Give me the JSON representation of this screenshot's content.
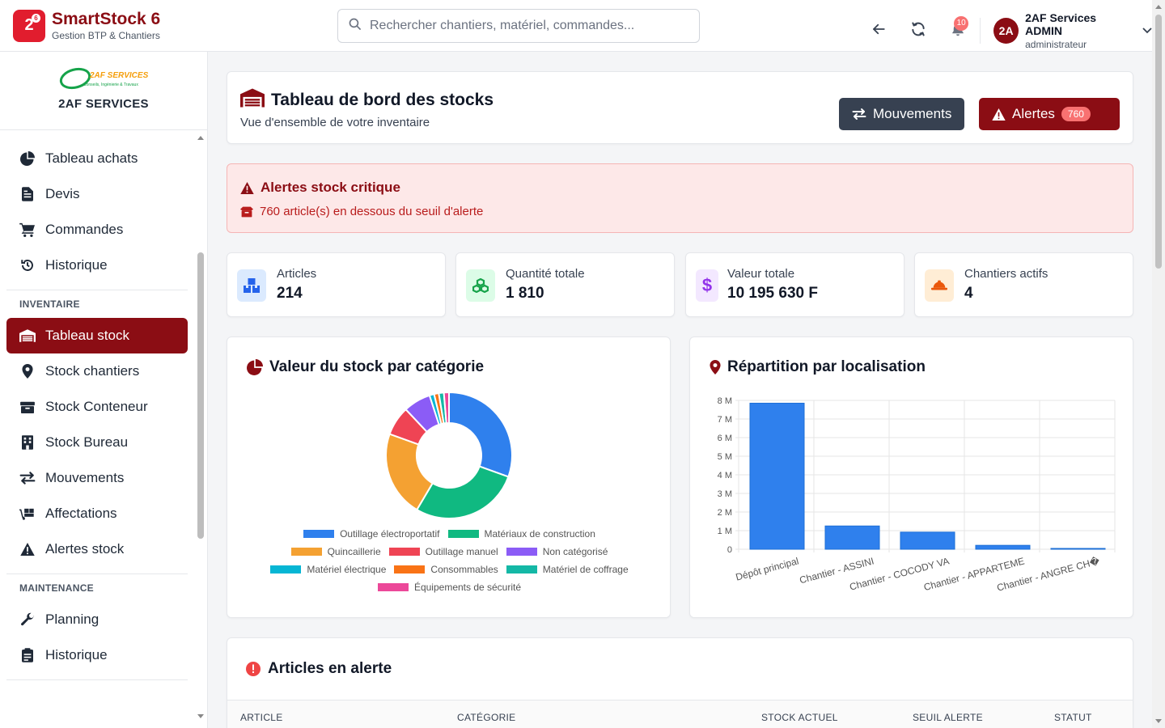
{
  "app": {
    "name": "SmartStock 6",
    "subtitle": "Gestion BTP & Chantiers",
    "logo_text": "2",
    "logo_sup": "6"
  },
  "search": {
    "placeholder": "Rechercher chantiers, matériel, commandes..."
  },
  "notifications": {
    "count": "10"
  },
  "user": {
    "initials": "2A",
    "name": "2AF Services ADMIN",
    "role": "administrateur"
  },
  "company": {
    "name": "2AF SERVICES",
    "logo_text": "2AF SERVICES",
    "logo_tagline": "Conseils, Ingénierie & Travaux"
  },
  "sidebar": {
    "items_top": [
      {
        "label": "Tableau achats",
        "icon": "pie-chart-icon"
      },
      {
        "label": "Devis",
        "icon": "file-invoice-icon"
      },
      {
        "label": "Commandes",
        "icon": "cart-icon"
      },
      {
        "label": "Historique",
        "icon": "history-icon"
      }
    ],
    "section_inventaire": "INVENTAIRE",
    "items_inventaire": [
      {
        "label": "Tableau stock",
        "icon": "warehouse-icon"
      },
      {
        "label": "Stock chantiers",
        "icon": "map-pin-icon"
      },
      {
        "label": "Stock Conteneur",
        "icon": "container-icon"
      },
      {
        "label": "Stock Bureau",
        "icon": "building-icon"
      },
      {
        "label": "Mouvements",
        "icon": "exchange-icon"
      },
      {
        "label": "Affectations",
        "icon": "dolly-icon"
      },
      {
        "label": "Alertes stock",
        "icon": "warning-icon"
      }
    ],
    "section_maintenance": "MAINTENANCE",
    "items_maintenance": [
      {
        "label": "Planning",
        "icon": "wrench-icon"
      },
      {
        "label": "Historique",
        "icon": "clipboard-icon"
      }
    ]
  },
  "header": {
    "title": "Tableau de bord des stocks",
    "subtitle": "Vue d'ensemble de votre inventaire",
    "btn_movements": "Mouvements",
    "btn_alerts": "Alertes",
    "alerts_count": "760"
  },
  "alert": {
    "title": "Alertes stock critique",
    "message": "760 article(s) en dessous du seuil d'alerte"
  },
  "stats": [
    {
      "label": "Articles",
      "value": "214",
      "color": "#2563eb",
      "bg": "#dbeafe"
    },
    {
      "label": "Quantité totale",
      "value": "1 810",
      "color": "#16a34a",
      "bg": "#dcfce7"
    },
    {
      "label": "Valeur totale",
      "value": "10 195 630 F",
      "color": "#9333ea",
      "bg": "#f3e8ff"
    },
    {
      "label": "Chantiers actifs",
      "value": "4",
      "color": "#ea580c",
      "bg": "#ffedd5"
    }
  ],
  "chart_data": [
    {
      "type": "pie",
      "title": "Valeur du stock par catégorie",
      "categories": [
        "Outillage électroportatif",
        "Matériaux de construction",
        "Quincaillerie",
        "Outillage manuel",
        "Non catégorisé",
        "Matériel électrique",
        "Consommables",
        "Matériel de coffrage",
        "Équipements de sécurité"
      ],
      "values": [
        30.5,
        28.0,
        22.0,
        7.5,
        7.0,
        1.2,
        1.2,
        1.3,
        1.3
      ],
      "colors": [
        "#2f80ed",
        "#10b981",
        "#f4a132",
        "#ef4454",
        "#8b5cf6",
        "#06b6d4",
        "#f97316",
        "#14b8a6",
        "#ec4899"
      ],
      "legend_rows": [
        [
          0,
          1
        ],
        [
          2,
          3,
          4
        ],
        [
          5,
          6,
          7
        ],
        [
          8
        ]
      ]
    },
    {
      "type": "bar",
      "title": "Répartition par localisation",
      "categories": [
        "Dépôt principal",
        "Chantier - ASSINI",
        "Chantier - COCODY VA",
        "Chantier - APPARTEME",
        "Chantier - ANGRE CH�"
      ],
      "values": [
        7850000,
        1250000,
        920000,
        210000,
        40000
      ],
      "yticks": [
        "0",
        "1 M",
        "2 M",
        "3 M",
        "4 M",
        "5 M",
        "6 M",
        "7 M",
        "8 M"
      ],
      "ylim": [
        0,
        8000000
      ],
      "color": "#2f80ed"
    }
  ],
  "table": {
    "title": "Articles en alerte",
    "columns": [
      "ARTICLE",
      "CATÉGORIE",
      "STOCK ACTUEL",
      "SEUIL ALERTE",
      "STATUT"
    ]
  }
}
